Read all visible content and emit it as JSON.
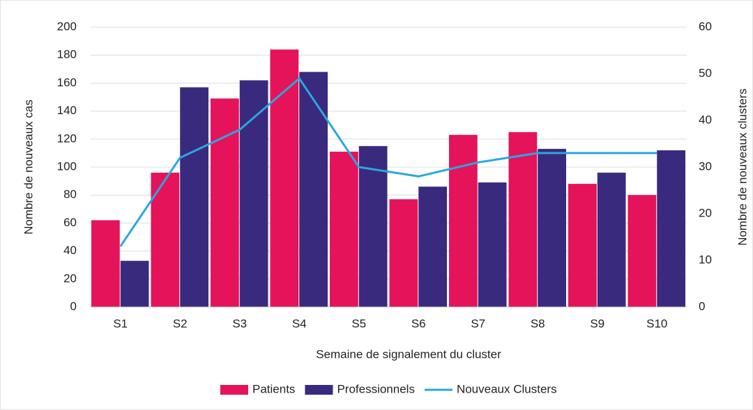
{
  "chart_data": {
    "type": "bar",
    "x_label": "Semaine de signalement du cluster",
    "y_label": "Nombre de nouveaux cas",
    "y2_label": "Nombre de nouveaux clusters",
    "categories": [
      "S1",
      "S2",
      "S3",
      "S4",
      "S5",
      "S6",
      "S7",
      "S8",
      "S9",
      "S10"
    ],
    "series": [
      {
        "name": "Patients",
        "color": "#e5135a",
        "type": "bar",
        "values": [
          62,
          96,
          149,
          184,
          111,
          77,
          123,
          125,
          88,
          80
        ]
      },
      {
        "name": "Professionnels",
        "color": "#3a2a7e",
        "type": "bar",
        "values": [
          33,
          157,
          162,
          168,
          115,
          86,
          89,
          113,
          96,
          112
        ]
      },
      {
        "name": "Nouveaux Clusters",
        "color": "#2aa7df",
        "type": "line",
        "axis": "y2",
        "values": [
          13,
          32,
          38,
          49,
          30,
          28,
          31,
          33,
          33,
          33
        ]
      }
    ],
    "ylim": [
      0,
      200
    ],
    "yticks": [
      0,
      20,
      40,
      60,
      80,
      100,
      120,
      140,
      160,
      180,
      200
    ],
    "y2lim": [
      0,
      60
    ],
    "y2ticks": [
      0,
      10,
      20,
      30,
      40,
      50,
      60
    ],
    "grid": true,
    "legend": "bottom"
  }
}
